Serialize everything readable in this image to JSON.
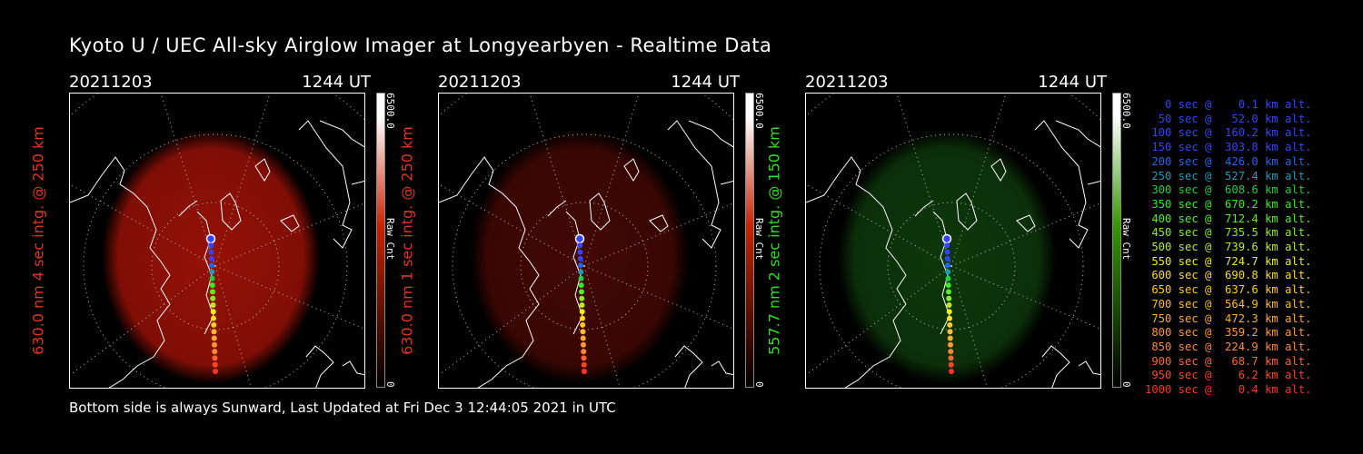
{
  "title": "Kyoto U / UEC All-sky Airglow Imager at Longyearbyen - Realtime Data",
  "footer": "Bottom side is always Sunward, Last Updated at Fri Dec  3 12:44:05 2021 in UTC",
  "panels": [
    {
      "date": "20211203",
      "time": "1244 UT",
      "side_label": "630.0 nm 4 sec intg. @ 250 km",
      "label_color": "#e33322",
      "cbar_max": "6500.0",
      "cbar_label": "Raw Cnt",
      "cbar_min": "0",
      "glow_color": "#b01408",
      "glow_opacity": 0.85,
      "cbar_end": "#cc2200"
    },
    {
      "date": "20211203",
      "time": "1244 UT",
      "side_label": "630.0 nm 1 sec intg. @ 250 km",
      "label_color": "#e33322",
      "cbar_max": "6500.0",
      "cbar_label": "Raw Cnt",
      "cbar_min": "0",
      "glow_color": "#4a0904",
      "glow_opacity": 0.9,
      "cbar_end": "#cc2200"
    },
    {
      "date": "20211203",
      "time": "1244 UT",
      "side_label": "557.7 nm 2 sec intg. @ 150 km",
      "label_color": "#33dd22",
      "cbar_max": "6500.0",
      "cbar_label": "Raw Cnt",
      "cbar_min": "0",
      "glow_color": "#0e3a0b",
      "glow_opacity": 0.95,
      "cbar_end": "#339900"
    }
  ],
  "legend": [
    {
      "text": "   0 sec @    0.1 km alt.",
      "color": "#3344ff"
    },
    {
      "text": "  50 sec @   52.0 km alt.",
      "color": "#3344ff"
    },
    {
      "text": " 100 sec @  160.2 km alt.",
      "color": "#3344ff"
    },
    {
      "text": " 150 sec @  303.8 km alt.",
      "color": "#3344ff"
    },
    {
      "text": " 200 sec @  426.0 km alt.",
      "color": "#2266ee"
    },
    {
      "text": " 250 sec @  527.4 km alt.",
      "color": "#2299bb"
    },
    {
      "text": " 300 sec @  608.6 km alt.",
      "color": "#22cc44"
    },
    {
      "text": " 350 sec @  670.2 km alt.",
      "color": "#33ee22"
    },
    {
      "text": " 400 sec @  712.4 km alt.",
      "color": "#55ee22"
    },
    {
      "text": " 450 sec @  735.5 km alt.",
      "color": "#88ee22"
    },
    {
      "text": " 500 sec @  739.6 km alt.",
      "color": "#bbee22"
    },
    {
      "text": " 550 sec @  724.7 km alt.",
      "color": "#eeee22"
    },
    {
      "text": " 600 sec @  690.8 km alt.",
      "color": "#ffdd22"
    },
    {
      "text": " 650 sec @  637.6 km alt.",
      "color": "#ffcc22"
    },
    {
      "text": " 700 sec @  564.9 km alt.",
      "color": "#ffbb33"
    },
    {
      "text": " 750 sec @  472.3 km alt.",
      "color": "#ffaa33"
    },
    {
      "text": " 800 sec @  359.2 km alt.",
      "color": "#ff9933"
    },
    {
      "text": " 850 sec @  224.9 km alt.",
      "color": "#ff8833"
    },
    {
      "text": " 900 sec @   68.7 km alt.",
      "color": "#ff6633"
    },
    {
      "text": " 950 sec @    6.2 km alt.",
      "color": "#ff4422"
    },
    {
      "text": "1000 sec @    0.4 km alt.",
      "color": "#ff3322"
    }
  ]
}
